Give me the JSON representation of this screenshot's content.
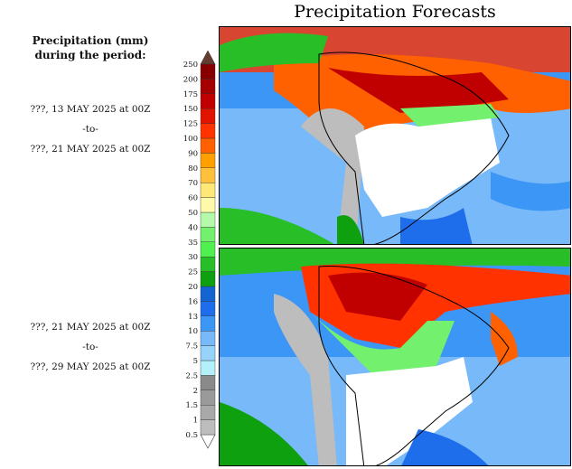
{
  "header": {
    "title": "Precipitation Forecasts"
  },
  "legend": {
    "title_line1": "Precipitation (mm)",
    "title_line2": "during the period:",
    "levels": [
      "0.5",
      "1",
      "1.5",
      "2",
      "2.5",
      "5",
      "7.5",
      "10",
      "13",
      "16",
      "20",
      "25",
      "30",
      "35",
      "40",
      "50",
      "60",
      "70",
      "80",
      "90",
      "100",
      "125",
      "150",
      "175",
      "200",
      "250"
    ],
    "colors": [
      "#bdbdbd",
      "#a9a9a9",
      "#9a9a9a",
      "#8a8a8a",
      "#b4f0fa",
      "#96d2fa",
      "#78b9fa",
      "#3c96f5",
      "#1e6eeb",
      "#1464d2",
      "#0fa00f",
      "#28be28",
      "#50f050",
      "#73f06e",
      "#b4faaa",
      "#fffaaa",
      "#ffe878",
      "#ffc03c",
      "#ffa000",
      "#ff6000",
      "#ff3200",
      "#e11400",
      "#c00000",
      "#a50000",
      "#870000",
      "#643c32"
    ]
  },
  "periods": [
    {
      "start": "???, 13 MAY 2025 at 00Z",
      "sep": "-to-",
      "end": "???, 21 MAY 2025 at 00Z"
    },
    {
      "start": "???, 21 MAY 2025 at 00Z",
      "sep": "-to-",
      "end": "???, 29 MAY 2025 at 00Z"
    }
  ]
}
